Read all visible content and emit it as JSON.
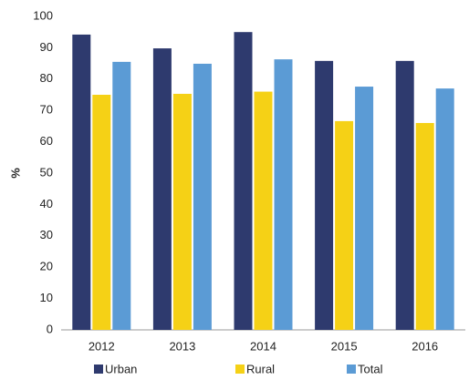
{
  "chart_data": {
    "type": "bar",
    "y_label": "%",
    "categories": [
      "2012",
      "2013",
      "2014",
      "2015",
      "2016"
    ],
    "series": [
      {
        "name": "Urban",
        "color": "#2e3a6e",
        "values": [
          94.2,
          89.8,
          95,
          85.8,
          85.8
        ]
      },
      {
        "name": "Rural",
        "color": "#f5d116",
        "values": [
          75,
          75.3,
          76,
          66.6,
          66
        ]
      },
      {
        "name": "Total",
        "color": "#5b9bd5",
        "values": [
          85.5,
          84.9,
          86.3,
          77.6,
          77
        ]
      }
    ],
    "ylim": [
      0,
      100
    ],
    "yticks": [
      0,
      10,
      20,
      30,
      40,
      50,
      60,
      70,
      80,
      90,
      100
    ],
    "grid": false
  }
}
